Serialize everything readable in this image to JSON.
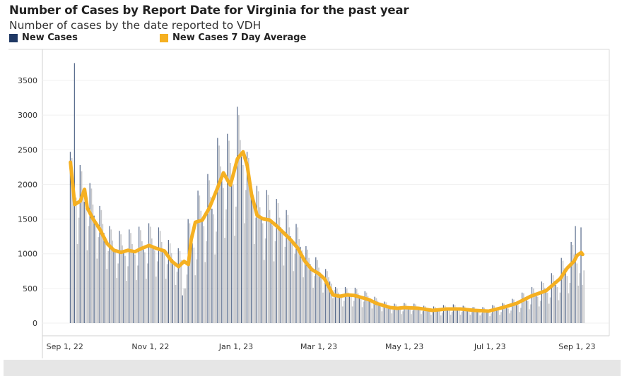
{
  "chart_data": {
    "type": "bar",
    "title": "Number of Cases by Report Date for Virginia for the past year",
    "subtitle": "Number of cases by the date reported to VDH",
    "legend": [
      {
        "name": "New Cases",
        "color": "#1f3864"
      },
      {
        "name": "New Cases 7 Day Average",
        "color": "#f5b021"
      }
    ],
    "legend_position": "top-left",
    "grid": true,
    "ylim": [
      0,
      3950
    ],
    "y_ticks": [
      0,
      500,
      1000,
      1500,
      2000,
      2500,
      3000,
      3500
    ],
    "x_range": [
      "2022-08-16",
      "2023-09-24"
    ],
    "x_ticks": [
      {
        "date": "2022-09-01",
        "label": "Sep 1, 22"
      },
      {
        "date": "2022-11-01",
        "label": "Nov 1, 22"
      },
      {
        "date": "2023-01-01",
        "label": "Jan 1, 23"
      },
      {
        "date": "2023-03-01",
        "label": "Mar 1, 23"
      },
      {
        "date": "2023-05-01",
        "label": "May 1, 23"
      },
      {
        "date": "2023-07-01",
        "label": "Jul 1, 23"
      },
      {
        "date": "2023-09-01",
        "label": "Sep 1, 23"
      }
    ],
    "series": [
      {
        "name": "New Cases",
        "kind": "bar",
        "first_date": "2022-09-05",
        "colors": {
          "primary": "#1f3864",
          "secondary": "#c8c9cc"
        },
        "values": [
          2470,
          2380,
          2090,
          3750,
          1810,
          1140,
          1520,
          2280,
          2190,
          1930,
          1750,
          1660,
          1050,
          1400,
          2020,
          1940,
          1710,
          1550,
          1470,
          930,
          1240,
          1690,
          1630,
          1430,
          1300,
          1240,
          780,
          1040,
          1400,
          1350,
          1190,
          1080,
          1030,
          650,
          860,
          1330,
          1280,
          1120,
          1020,
          970,
          610,
          820,
          1350,
          1300,
          1140,
          1040,
          990,
          620,
          830,
          1390,
          1340,
          1180,
          1070,
          1020,
          640,
          860,
          1440,
          1390,
          1220,
          1110,
          1050,
          670,
          890,
          1380,
          1330,
          1170,
          1060,
          1010,
          640,
          850,
          1200,
          1150,
          1010,
          920,
          870,
          550,
          740,
          1080,
          1040,
          910,
          400,
          500,
          500,
          700,
          1500,
          1440,
          1270,
          1150,
          1090,
          690,
          920,
          1910,
          1840,
          1620,
          1470,
          1400,
          880,
          1180,
          2150,
          2060,
          1820,
          1650,
          1570,
          990,
          1320,
          2670,
          2560,
          2260,
          2050,
          1950,
          1230,
          1640,
          2730,
          2630,
          2310,
          2100,
          2000,
          1260,
          1680,
          3120,
          3000,
          2640,
          2400,
          2280,
          1440,
          1920,
          2470,
          2380,
          2090,
          1900,
          1810,
          1140,
          1520,
          1980,
          1900,
          1670,
          1520,
          1440,
          910,
          1220,
          1920,
          1850,
          1630,
          1480,
          1410,
          890,
          1180,
          1790,
          1730,
          1520,
          1380,
          1310,
          830,
          1100,
          1630,
          1560,
          1380,
          1250,
          1190,
          750,
          1000,
          1430,
          1380,
          1210,
          1100,
          1050,
          660,
          880,
          1110,
          1060,
          940,
          850,
          810,
          510,
          680,
          950,
          910,
          800,
          730,
          690,
          440,
          580,
          780,
          750,
          660,
          600,
          570,
          360,
          480,
          520,
          500,
          440,
          400,
          380,
          240,
          320,
          520,
          500,
          440,
          400,
          380,
          240,
          320,
          510,
          490,
          430,
          390,
          370,
          230,
          310,
          460,
          440,
          390,
          350,
          330,
          210,
          280,
          380,
          360,
          320,
          290,
          280,
          170,
          230,
          310,
          300,
          260,
          240,
          230,
          140,
          190,
          280,
          270,
          240,
          215,
          200,
          130,
          170,
          290,
          280,
          240,
          220,
          210,
          130,
          180,
          280,
          270,
          240,
          215,
          200,
          130,
          170,
          250,
          240,
          210,
          195,
          190,
          120,
          160,
          240,
          230,
          200,
          185,
          180,
          110,
          150,
          260,
          250,
          220,
          200,
          190,
          120,
          160,
          270,
          260,
          230,
          205,
          190,
          120,
          160,
          250,
          240,
          210,
          195,
          190,
          120,
          160,
          230,
          230,
          200,
          180,
          170,
          110,
          140,
          230,
          220,
          190,
          175,
          170,
          100,
          140,
          260,
          250,
          220,
          200,
          190,
          120,
          160,
          290,
          280,
          250,
          225,
          210,
          140,
          180,
          350,
          340,
          300,
          270,
          260,
          160,
          220,
          440,
          430,
          370,
          340,
          320,
          200,
          270,
          520,
          500,
          440,
          400,
          380,
          240,
          320,
          600,
          580,
          510,
          460,
          440,
          280,
          370,
          720,
          690,
          610,
          550,
          520,
          330,
          440,
          940,
          900,
          790,
          720,
          680,
          430,
          580,
          1170,
          1130,
          990,
          1400,
          860,
          540,
          720,
          1380,
          550,
          760
        ]
      },
      {
        "name": "New Cases 7 Day Average",
        "kind": "line",
        "color": "#f5b021",
        "points": [
          [
            "2022-09-05",
            2320
          ],
          [
            "2022-09-08",
            1710
          ],
          [
            "2022-09-12",
            1760
          ],
          [
            "2022-09-15",
            1930
          ],
          [
            "2022-09-17",
            1660
          ],
          [
            "2022-09-21",
            1505
          ],
          [
            "2022-09-26",
            1350
          ],
          [
            "2022-10-01",
            1150
          ],
          [
            "2022-10-06",
            1050
          ],
          [
            "2022-10-11",
            1020
          ],
          [
            "2022-10-16",
            1050
          ],
          [
            "2022-10-21",
            1030
          ],
          [
            "2022-10-26",
            1080
          ],
          [
            "2022-10-31",
            1120
          ],
          [
            "2022-11-05",
            1080
          ],
          [
            "2022-11-11",
            1040
          ],
          [
            "2022-11-16",
            895
          ],
          [
            "2022-11-21",
            815
          ],
          [
            "2022-11-25",
            890
          ],
          [
            "2022-11-28",
            845
          ],
          [
            "2022-11-30",
            1200
          ],
          [
            "2022-12-03",
            1455
          ],
          [
            "2022-12-08",
            1485
          ],
          [
            "2022-12-13",
            1660
          ],
          [
            "2022-12-18",
            1910
          ],
          [
            "2022-12-23",
            2167
          ],
          [
            "2022-12-26",
            2060
          ],
          [
            "2022-12-28",
            1990
          ],
          [
            "2023-01-02",
            2370
          ],
          [
            "2023-01-06",
            2470
          ],
          [
            "2023-01-09",
            2270
          ],
          [
            "2023-01-12",
            1860
          ],
          [
            "2023-01-16",
            1555
          ],
          [
            "2023-01-20",
            1505
          ],
          [
            "2023-01-25",
            1485
          ],
          [
            "2023-01-30",
            1400
          ],
          [
            "2023-02-04",
            1300
          ],
          [
            "2023-02-09",
            1200
          ],
          [
            "2023-02-14",
            1080
          ],
          [
            "2023-02-19",
            895
          ],
          [
            "2023-02-24",
            773
          ],
          [
            "2023-03-01",
            712
          ],
          [
            "2023-03-05",
            640
          ],
          [
            "2023-03-09",
            490
          ],
          [
            "2023-03-11",
            407
          ],
          [
            "2023-03-16",
            387
          ],
          [
            "2023-03-21",
            407
          ],
          [
            "2023-03-26",
            400
          ],
          [
            "2023-04-01",
            366
          ],
          [
            "2023-04-06",
            336
          ],
          [
            "2023-04-11",
            285
          ],
          [
            "2023-04-16",
            254
          ],
          [
            "2023-04-21",
            224
          ],
          [
            "2023-04-26",
            214
          ],
          [
            "2023-05-01",
            224
          ],
          [
            "2023-05-11",
            214
          ],
          [
            "2023-05-21",
            183
          ],
          [
            "2023-05-31",
            203
          ],
          [
            "2023-06-10",
            203
          ],
          [
            "2023-06-20",
            183
          ],
          [
            "2023-06-30",
            173
          ],
          [
            "2023-07-10",
            224
          ],
          [
            "2023-07-20",
            285
          ],
          [
            "2023-07-30",
            387
          ],
          [
            "2023-08-10",
            468
          ],
          [
            "2023-08-20",
            641
          ],
          [
            "2023-08-25",
            793
          ],
          [
            "2023-08-30",
            895
          ],
          [
            "2023-09-01",
            975
          ],
          [
            "2023-09-04",
            1017
          ],
          [
            "2023-09-05",
            990
          ]
        ]
      }
    ]
  }
}
